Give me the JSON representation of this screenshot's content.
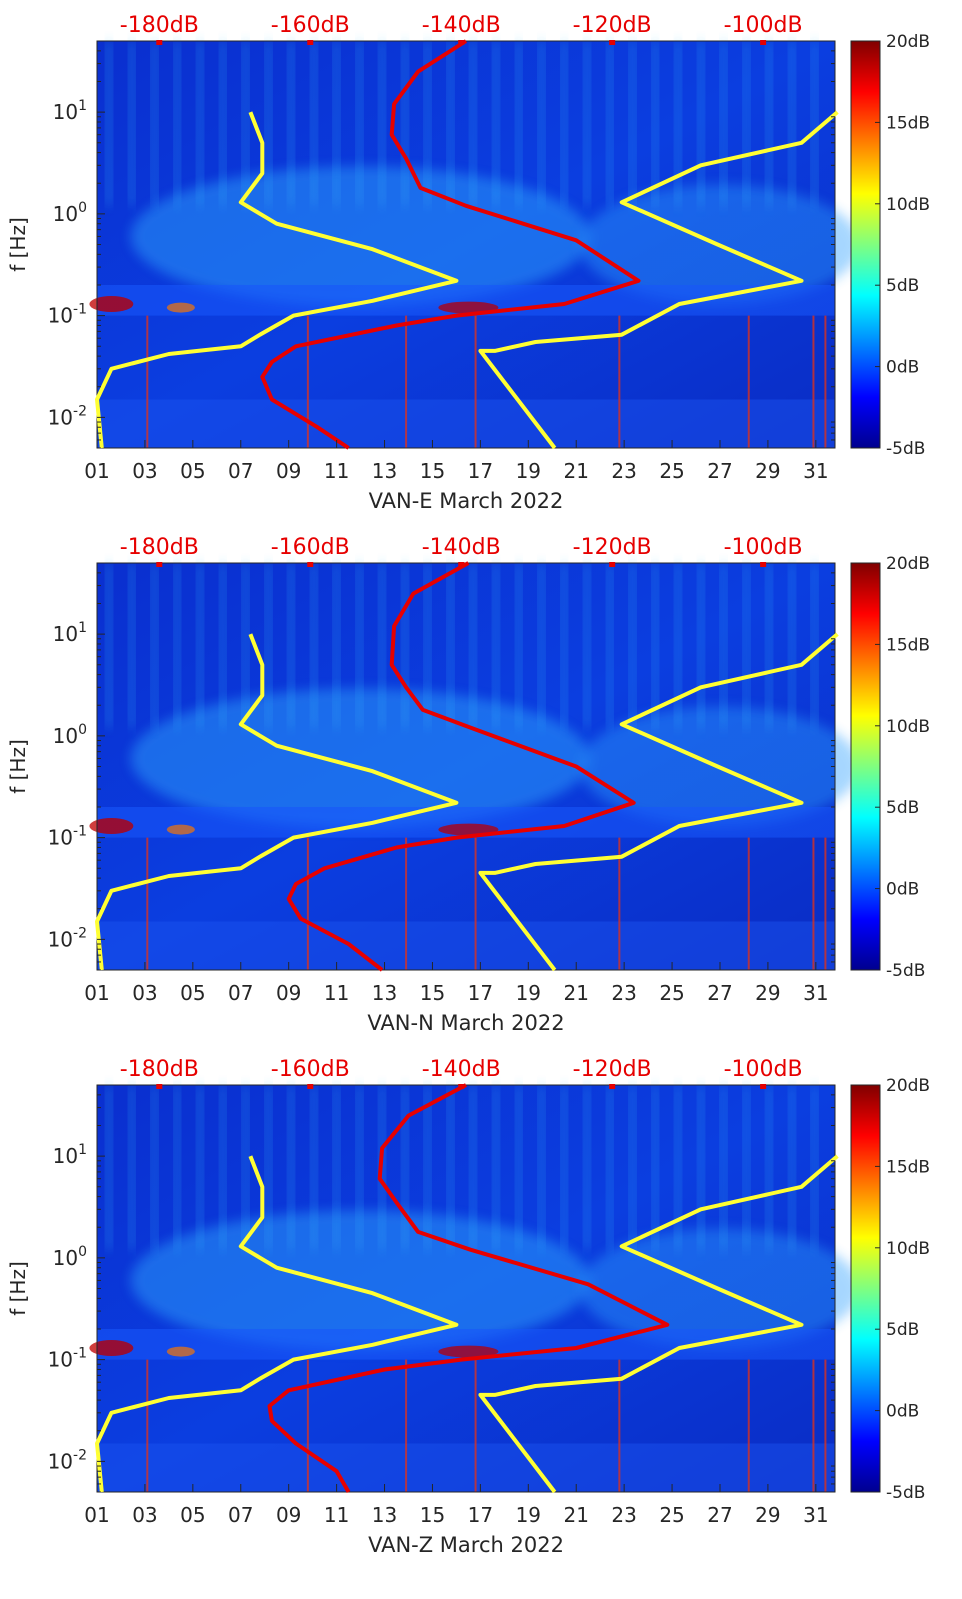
{
  "chart_data": [
    {
      "type": "heatmap",
      "title": "",
      "xlabel": "VAN-E March 2022",
      "ylabel": "f [Hz]",
      "x_ticks": [
        "01",
        "03",
        "05",
        "07",
        "09",
        "11",
        "13",
        "15",
        "17",
        "19",
        "21",
        "23",
        "25",
        "27",
        "29",
        "31"
      ],
      "y_ticks": [
        "10-2",
        "10-1",
        "100",
        "101"
      ],
      "ylim": [
        0.005,
        50
      ],
      "y_scale": "log",
      "top_axis_ticks": [
        "-180dB",
        "-160dB",
        "-140dB",
        "-120dB",
        "-100dB"
      ],
      "colorbar": {
        "ticks": [
          "20dB",
          "15dB",
          "10dB",
          "5dB",
          "0dB",
          "-5dB"
        ],
        "range": [
          -5,
          20
        ],
        "colormap": "jet"
      },
      "series": [
        {
          "color": "#ffff33",
          "day": [
            7.4,
            7.9,
            7.9,
            7.0,
            8.5,
            12.5,
            16.0,
            12.5,
            9.2,
            7.8,
            7.0,
            4.0,
            1.6,
            1.0,
            1.2
          ],
          "f": [
            10,
            5,
            2.5,
            1.3,
            0.8,
            0.45,
            0.22,
            0.14,
            0.1,
            0.065,
            0.05,
            0.042,
            0.03,
            0.015,
            0.005
          ]
        },
        {
          "color": "#ffff33",
          "day": [
            31.9,
            30.4,
            26.2,
            22.9,
            26.9,
            30.4,
            25.3,
            22.9,
            19.3,
            17.6,
            17.0,
            20.1
          ],
          "f": [
            10,
            5,
            3,
            1.3,
            0.5,
            0.22,
            0.13,
            0.065,
            0.055,
            0.045,
            0.045,
            0.005
          ]
        },
        {
          "color": "#e60000",
          "day": [
            16.4,
            14.4,
            13.4,
            13.3,
            13.9,
            14.5,
            16.4,
            21.0,
            23.6,
            20.5,
            16.0,
            13.5,
            9.3,
            8.3,
            7.9,
            8.3,
            10.2,
            11.5
          ],
          "f": [
            50,
            25,
            12,
            6,
            3.5,
            1.8,
            1.2,
            0.55,
            0.22,
            0.13,
            0.1,
            0.08,
            0.05,
            0.035,
            0.025,
            0.015,
            0.008,
            0.005
          ]
        }
      ]
    },
    {
      "type": "heatmap",
      "title": "",
      "xlabel": "VAN-N March 2022",
      "ylabel": "f [Hz]",
      "x_ticks": [
        "01",
        "03",
        "05",
        "07",
        "09",
        "11",
        "13",
        "15",
        "17",
        "19",
        "21",
        "23",
        "25",
        "27",
        "29",
        "31"
      ],
      "y_ticks": [
        "10-2",
        "10-1",
        "100",
        "101"
      ],
      "ylim": [
        0.005,
        50
      ],
      "y_scale": "log",
      "top_axis_ticks": [
        "-180dB",
        "-160dB",
        "-140dB",
        "-120dB",
        "-100dB"
      ],
      "colorbar": {
        "ticks": [
          "20dB",
          "15dB",
          "10dB",
          "5dB",
          "0dB",
          "-5dB"
        ],
        "range": [
          -5,
          20
        ],
        "colormap": "jet"
      },
      "series": [
        {
          "color": "#ffff33",
          "day": [
            7.4,
            7.9,
            7.9,
            7.0,
            8.5,
            12.5,
            16.0,
            12.5,
            9.2,
            7.8,
            7.0,
            4.0,
            1.6,
            1.0,
            1.2
          ],
          "f": [
            10,
            5,
            2.5,
            1.3,
            0.8,
            0.45,
            0.22,
            0.14,
            0.1,
            0.065,
            0.05,
            0.042,
            0.03,
            0.015,
            0.005
          ]
        },
        {
          "color": "#ffff33",
          "day": [
            31.9,
            30.4,
            26.2,
            22.9,
            26.9,
            30.4,
            25.3,
            22.9,
            19.3,
            17.6,
            17.0,
            20.1
          ],
          "f": [
            10,
            5,
            3,
            1.3,
            0.5,
            0.22,
            0.13,
            0.065,
            0.055,
            0.045,
            0.045,
            0.005
          ]
        },
        {
          "color": "#e60000",
          "day": [
            16.5,
            14.2,
            13.4,
            13.3,
            13.9,
            14.6,
            16.6,
            21.0,
            23.4,
            20.5,
            16.0,
            13.5,
            10.5,
            9.3,
            9.0,
            9.5,
            11.5,
            12.9
          ],
          "f": [
            50,
            25,
            12,
            5,
            3,
            1.8,
            1.2,
            0.5,
            0.22,
            0.13,
            0.1,
            0.08,
            0.05,
            0.035,
            0.025,
            0.016,
            0.009,
            0.005
          ]
        }
      ]
    },
    {
      "type": "heatmap",
      "title": "",
      "xlabel": "VAN-Z March 2022",
      "ylabel": "f [Hz]",
      "x_ticks": [
        "01",
        "03",
        "05",
        "07",
        "09",
        "11",
        "13",
        "15",
        "17",
        "19",
        "21",
        "23",
        "25",
        "27",
        "29",
        "31"
      ],
      "y_ticks": [
        "10-2",
        "10-1",
        "100",
        "101"
      ],
      "ylim": [
        0.005,
        50
      ],
      "y_scale": "log",
      "top_axis_ticks": [
        "-180dB",
        "-160dB",
        "-140dB",
        "-120dB",
        "-100dB"
      ],
      "colorbar": {
        "ticks": [
          "20dB",
          "15dB",
          "10dB",
          "5dB",
          "0dB",
          "-5dB"
        ],
        "range": [
          -5,
          20
        ],
        "colormap": "jet"
      },
      "series": [
        {
          "color": "#ffff33",
          "day": [
            7.4,
            7.9,
            7.9,
            7.0,
            8.5,
            12.5,
            16.0,
            12.5,
            9.2,
            7.8,
            7.0,
            4.0,
            1.6,
            1.0,
            1.2
          ],
          "f": [
            10,
            5,
            2.5,
            1.3,
            0.8,
            0.45,
            0.22,
            0.14,
            0.1,
            0.065,
            0.05,
            0.042,
            0.03,
            0.015,
            0.005
          ]
        },
        {
          "color": "#ffff33",
          "day": [
            31.9,
            30.4,
            26.2,
            22.9,
            26.9,
            30.4,
            25.3,
            22.9,
            19.3,
            17.6,
            17.0,
            20.1
          ],
          "f": [
            10,
            5,
            3,
            1.3,
            0.5,
            0.22,
            0.13,
            0.065,
            0.055,
            0.045,
            0.045,
            0.005
          ]
        },
        {
          "color": "#e60000",
          "day": [
            16.4,
            14.0,
            12.9,
            12.8,
            13.5,
            14.4,
            16.6,
            21.5,
            24.8,
            21.0,
            16.2,
            13.0,
            9.0,
            8.2,
            8.3,
            9.3,
            11.0,
            11.5
          ],
          "f": [
            50,
            25,
            12,
            6,
            3.5,
            1.8,
            1.2,
            0.55,
            0.22,
            0.13,
            0.1,
            0.08,
            0.05,
            0.035,
            0.025,
            0.015,
            0.008,
            0.005
          ]
        }
      ]
    }
  ]
}
